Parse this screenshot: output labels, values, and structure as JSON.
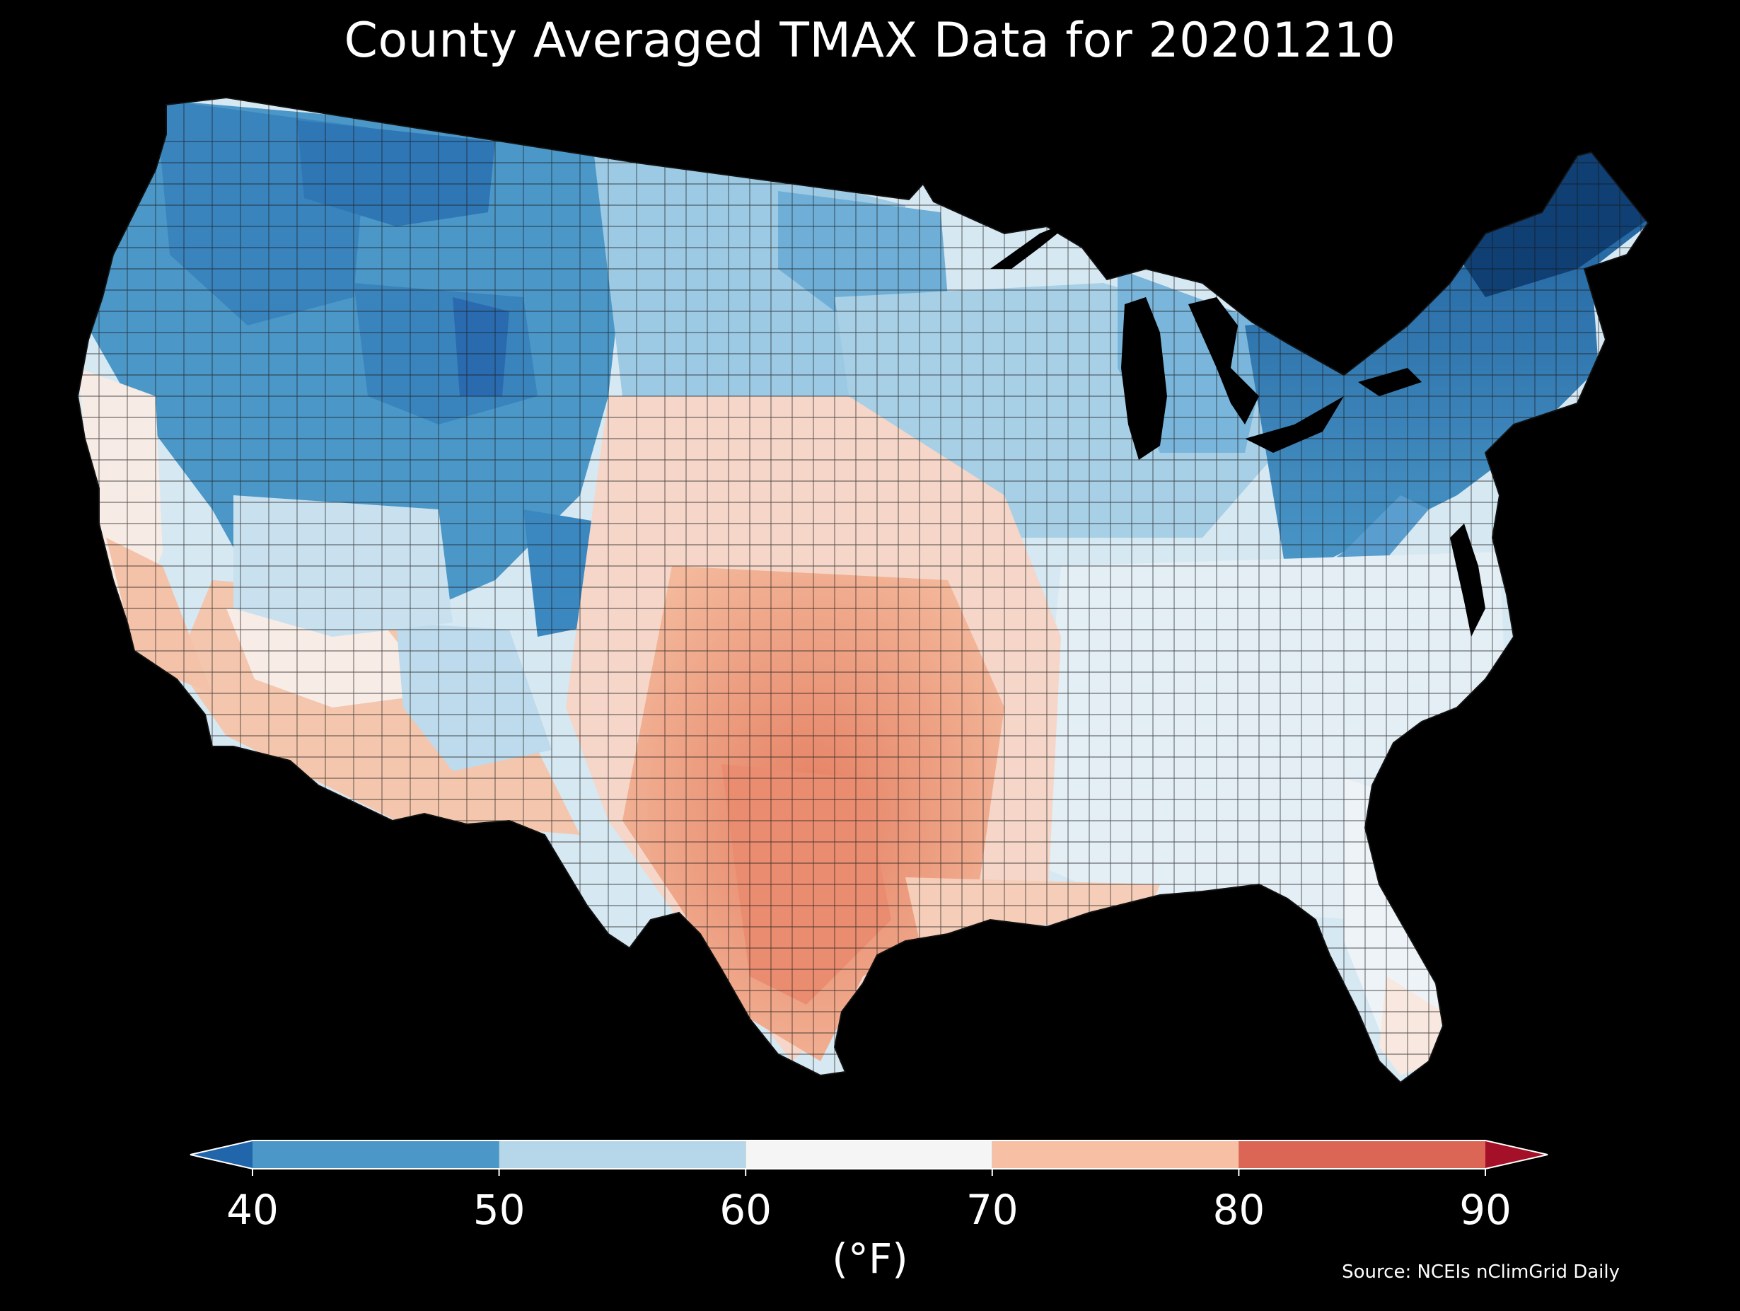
{
  "title": "County Averaged TMAX Data for 20201210",
  "colorbar": {
    "ticks": [
      "40",
      "50",
      "60",
      "70",
      "80",
      "90"
    ],
    "unit_label": "(°F)",
    "bins": [
      {
        "range": [
          40,
          50
        ],
        "color": "#4b98c8"
      },
      {
        "range": [
          50,
          60
        ],
        "color": "#b5d7e9"
      },
      {
        "range": [
          60,
          70
        ],
        "color": "#f5f5f5"
      },
      {
        "range": [
          70,
          80
        ],
        "color": "#f7c0a4"
      },
      {
        "range": [
          80,
          90
        ],
        "color": "#dc6655"
      }
    ],
    "under_color": "#2165ab",
    "over_color": "#a31028",
    "extend": "both"
  },
  "source": "Source: NCEIs nClimGrid Daily",
  "colors": {
    "background": "#000000",
    "water": "#000000",
    "county_border": "#1a1a1a"
  }
}
